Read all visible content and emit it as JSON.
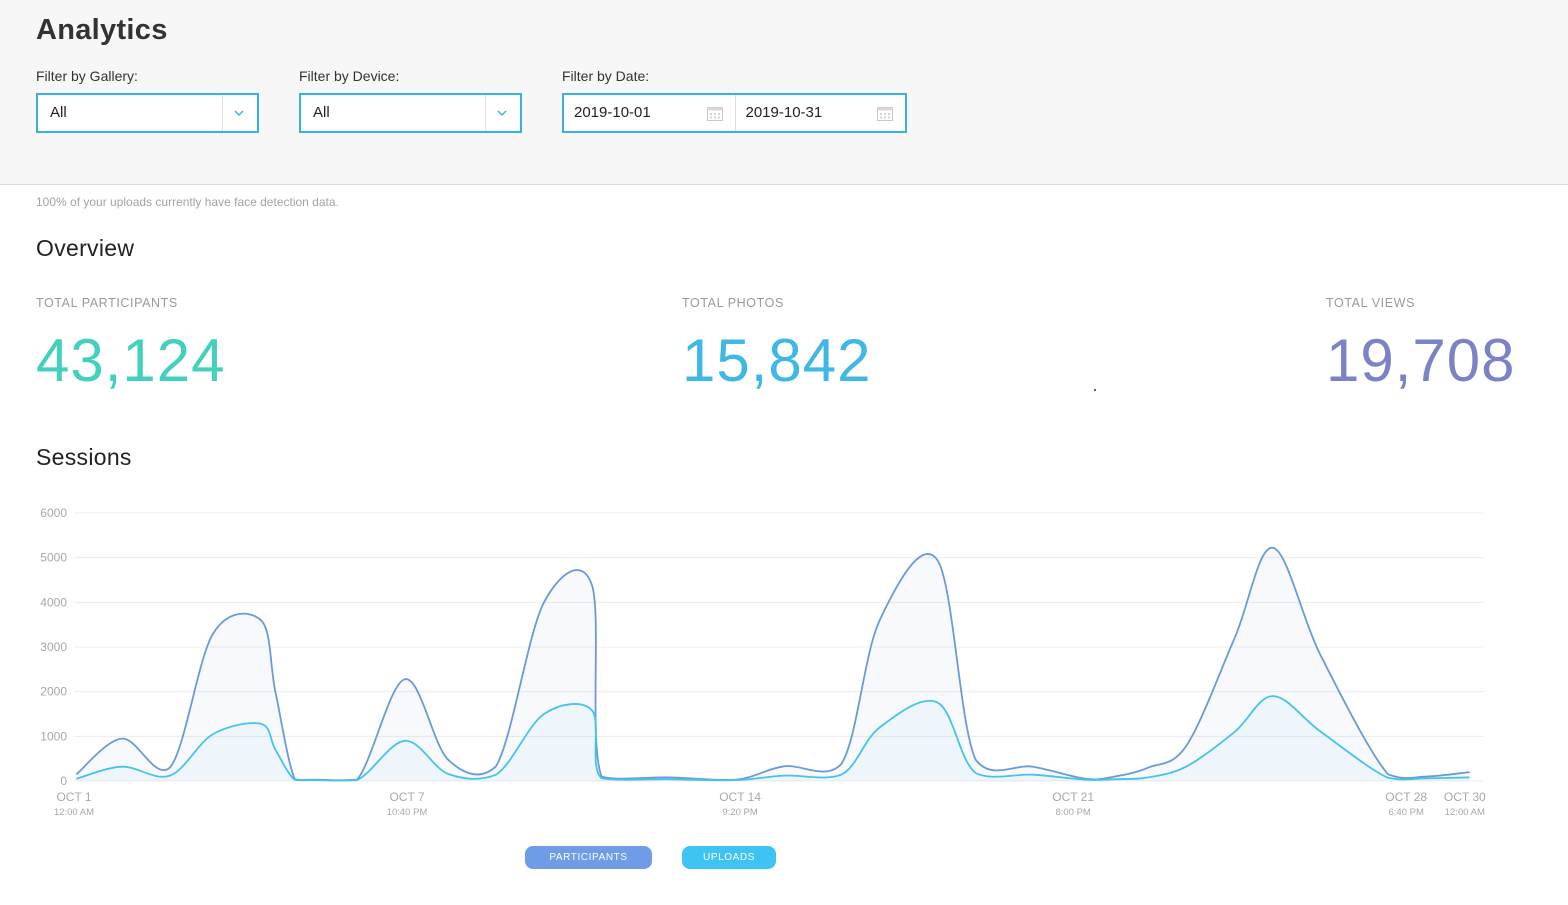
{
  "page": {
    "title": "Analytics"
  },
  "filters": {
    "gallery": {
      "label": "Filter by Gallery:",
      "value": "All"
    },
    "device": {
      "label": "Filter by Device:",
      "value": "All"
    },
    "date": {
      "label": "Filter by Date:",
      "start": "2019-10-01",
      "end": "2019-10-31"
    }
  },
  "notice": "100% of your uploads currently have face detection data.",
  "overview": {
    "title": "Overview",
    "stats": [
      {
        "label": "TOTAL PARTICIPANTS",
        "value": "43,124",
        "color": "#43d0bd"
      },
      {
        "label": "TOTAL PHOTOS",
        "value": "15,842",
        "color": "#3fb8e6"
      },
      {
        "label": "TOTAL VIEWS",
        "value": "19,708",
        "color": "#7b82c6"
      }
    ]
  },
  "sessions": {
    "title": "Sessions"
  },
  "colors": {
    "accent_border": "#3ab0de",
    "participants": "#6b9ad8",
    "uploads": "#45c3ea",
    "legend_participants": "#6f9ce6",
    "legend_uploads": "#3fc3f2"
  },
  "icons": {
    "select_chevron": "chevron-down-icon",
    "date_picker": "calendar-icon"
  },
  "chart_data": {
    "type": "area",
    "title": "Sessions",
    "xlabel": "",
    "ylabel": "",
    "ylim": [
      0,
      6000
    ],
    "yticks": [
      0,
      1000,
      2000,
      3000,
      4000,
      5000,
      6000
    ],
    "grid": true,
    "legend_placement": "bottom-center",
    "x_tick_labels": [
      {
        "day": 1,
        "line1": "OCT 1",
        "line2": "12:00 AM"
      },
      {
        "day": 7.944,
        "line1": "OCT 7",
        "line2": "10:40 PM"
      },
      {
        "day": 14.889,
        "line1": "OCT 14",
        "line2": "9:20 PM"
      },
      {
        "day": 21.833,
        "line1": "OCT 21",
        "line2": "8:00 PM"
      },
      {
        "day": 28.778,
        "line1": "OCT 28",
        "line2": "6:40 PM"
      },
      {
        "day": 30,
        "line1": "OCT 30",
        "line2": "12:00 AM"
      }
    ],
    "x": [
      1.05,
      2.0,
      3.0,
      3.9,
      4.9,
      5.2,
      5.6,
      6.0,
      6.9,
      7.9,
      8.8,
      9.8,
      10.8,
      11.8,
      12.0,
      13.4,
      14.8,
      15.8,
      17.0,
      17.8,
      19.0,
      19.8,
      21.0,
      22.1,
      22.7,
      23.4,
      24.2,
      25.2,
      26.0,
      27.0,
      28.4,
      29.2,
      30.1
    ],
    "series": [
      {
        "name": "PARTICIPANTS",
        "values": [
          150,
          950,
          300,
          3300,
          3600,
          2000,
          50,
          30,
          30,
          2280,
          480,
          330,
          4000,
          4380,
          100,
          80,
          30,
          330,
          380,
          3600,
          4950,
          480,
          320,
          50,
          100,
          300,
          800,
          3200,
          5220,
          2800,
          150,
          100,
          200
        ]
      },
      {
        "name": "UPLOADS",
        "values": [
          50,
          320,
          120,
          1050,
          1280,
          700,
          30,
          20,
          20,
          900,
          160,
          140,
          1500,
          1580,
          60,
          40,
          20,
          120,
          140,
          1200,
          1760,
          180,
          140,
          30,
          40,
          80,
          330,
          1100,
          1900,
          1100,
          70,
          60,
          80
        ]
      }
    ]
  }
}
